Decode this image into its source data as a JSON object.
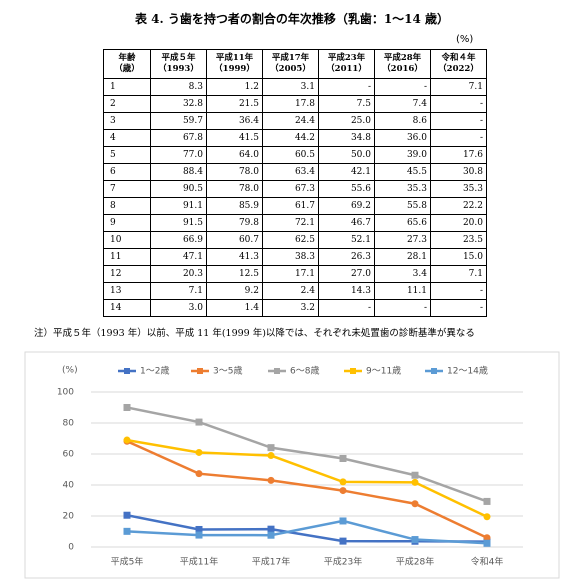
{
  "title": "表 4. う歯を持つ者の割合の年次推移（乳歯：1～14 歳）",
  "table": {
    "unit": "(%)",
    "header": [
      "年齢\n（歳）",
      "平成５年\n（1993）",
      "平成11年\n（1999）",
      "平成17年\n（2005）",
      "平成23年\n（2011）",
      "平成28年\n（2016）",
      "令和４年\n（2022）"
    ],
    "rows": [
      [
        "1",
        "8.3",
        "1.2",
        "3.1",
        "-",
        "-",
        "7.1"
      ],
      [
        "2",
        "32.8",
        "21.5",
        "17.8",
        "7.5",
        "7.4",
        "-"
      ],
      [
        "3",
        "59.7",
        "36.4",
        "24.4",
        "25.0",
        "8.6",
        "-"
      ],
      [
        "4",
        "67.8",
        "41.5",
        "44.2",
        "34.8",
        "36.0",
        "-"
      ],
      [
        "5",
        "77.0",
        "64.0",
        "60.5",
        "50.0",
        "39.0",
        "17.6"
      ],
      [
        "6",
        "88.4",
        "78.0",
        "63.4",
        "42.1",
        "45.5",
        "30.8"
      ],
      [
        "7",
        "90.5",
        "78.0",
        "67.3",
        "55.6",
        "35.3",
        "35.3"
      ],
      [
        "8",
        "91.1",
        "85.9",
        "61.7",
        "69.2",
        "55.8",
        "22.2"
      ],
      [
        "9",
        "91.5",
        "79.8",
        "72.1",
        "46.7",
        "65.6",
        "20.0"
      ],
      [
        "10",
        "66.9",
        "60.7",
        "62.5",
        "52.1",
        "27.3",
        "23.5"
      ],
      [
        "11",
        "47.1",
        "41.3",
        "38.3",
        "26.3",
        "28.1",
        "15.0"
      ],
      [
        "12",
        "20.3",
        "12.5",
        "17.1",
        "27.0",
        "3.4",
        "7.1"
      ],
      [
        "13",
        "7.1",
        "9.2",
        "2.4",
        "14.3",
        "11.1",
        "-"
      ],
      [
        "14",
        "3.0",
        "1.4",
        "3.2",
        "-",
        "-",
        "-"
      ]
    ]
  },
  "note": "注）平成５年（1993 年）以前、平成 11 年(1999 年)以降では、それぞれ未処置歯の診断基準が異なる",
  "chart_data": {
    "type": "line",
    "y_label": "(%)",
    "categories": [
      "平成5年",
      "平成11年",
      "平成17年",
      "平成23年",
      "平成28年",
      "令和4年"
    ],
    "ylim": [
      0,
      100
    ],
    "yticks": [
      0,
      20,
      40,
      60,
      80,
      100
    ],
    "grid": true,
    "legend": "top",
    "series": [
      {
        "name": "1～2歳",
        "color": "#4472c4",
        "values": [
          20.5,
          11.3,
          11.5,
          3.8,
          3.7,
          3.5
        ]
      },
      {
        "name": "3～5歳",
        "color": "#ed7d31",
        "values": [
          68.2,
          47.3,
          43.0,
          36.4,
          27.9,
          6.0
        ]
      },
      {
        "name": "6～8歳",
        "color": "#a5a5a5",
        "values": [
          90.0,
          80.6,
          64.1,
          57.1,
          46.3,
          29.4
        ]
      },
      {
        "name": "9～11歳",
        "color": "#ffc000",
        "values": [
          69.0,
          61.0,
          59.0,
          42.0,
          41.7,
          19.5
        ]
      },
      {
        "name": "12～14歳",
        "color": "#5b9bd5",
        "values": [
          10.1,
          7.7,
          7.6,
          16.8,
          4.8,
          2.4
        ]
      }
    ]
  }
}
